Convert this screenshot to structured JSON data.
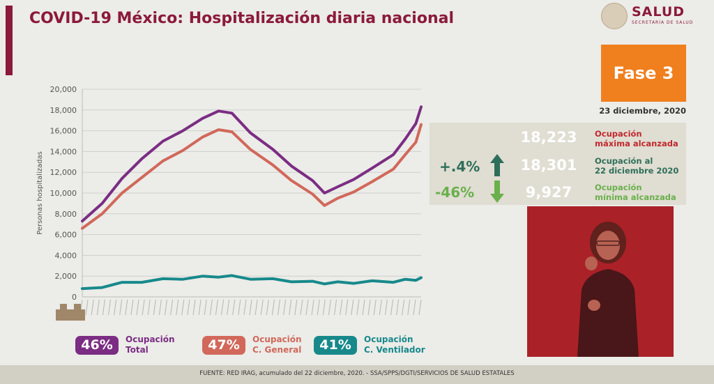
{
  "header": {
    "title": "COVID-19 México: Hospitalización diaria nacional",
    "logo_text": "SALUD",
    "logo_subtext": "SECRETARÍA DE SALUD"
  },
  "phase": {
    "label": "Fase 3",
    "date": "23 diciembre, 2020",
    "color": "#f07f1e"
  },
  "stats": {
    "max": {
      "value": "18,223",
      "label_line1": "Ocupación",
      "label_line2": "máxima alcanzada",
      "color": "#c0282d"
    },
    "current": {
      "value": "18,301",
      "label_line1": "Ocupación al",
      "label_line2": "22 diciembre 2020",
      "change": "+.4%",
      "direction": "up",
      "color": "#2e6f5a"
    },
    "min": {
      "value": "9,927",
      "label_line1": "Ocupación",
      "label_line2": "mínima alcanzada",
      "change": "-46%",
      "direction": "down",
      "color": "#6ab04c"
    }
  },
  "legend": [
    {
      "pct": "46%",
      "line1": "Ocupación",
      "line2": "Total",
      "color": "#7b2d83"
    },
    {
      "pct": "47%",
      "line1": "Ocupación",
      "line2": "C. General",
      "color": "#d1685a"
    },
    {
      "pct": "41%",
      "line1": "Ocupación",
      "line2": "C. Ventilador",
      "color": "#17898b"
    }
  ],
  "footer": "FUENTE: RED IRAG, acumulado del 22 diciembre, 2020. -  SSA/SPPS/DGTI/SERVICIOS DE SALUD ESTATALES",
  "chart_data": {
    "type": "line",
    "ylabel": "Personas hospitalizadas",
    "ylim": [
      0,
      20000
    ],
    "yticks": [
      "0",
      "2,000",
      "4,000",
      "6,000",
      "8,000",
      "10,000",
      "12,000",
      "14,000",
      "16,000",
      "18,000",
      "20,000"
    ],
    "grid": true,
    "x_range": [
      "2020-04-10",
      "2020-12-22"
    ],
    "series": [
      {
        "key": "total",
        "color": "#7b2d83",
        "values": [
          [
            "2020-04-10",
            7200
          ],
          [
            "2020-04-25",
            9100
          ],
          [
            "2020-05-10",
            11300
          ],
          [
            "2020-05-25",
            13400
          ],
          [
            "2020-06-10",
            14900
          ],
          [
            "2020-06-25",
            16100
          ],
          [
            "2020-07-10",
            17100
          ],
          [
            "2020-07-22",
            18000
          ],
          [
            "2020-08-01",
            17600
          ],
          [
            "2020-08-15",
            15900
          ],
          [
            "2020-09-01",
            14100
          ],
          [
            "2020-09-15",
            12700
          ],
          [
            "2020-10-01",
            11100
          ],
          [
            "2020-10-10",
            10100
          ],
          [
            "2020-10-20",
            10500
          ],
          [
            "2020-11-01",
            11400
          ],
          [
            "2020-11-15",
            12300
          ],
          [
            "2020-12-01",
            13800
          ],
          [
            "2020-12-10",
            15100
          ],
          [
            "2020-12-18",
            16800
          ],
          [
            "2020-12-22",
            18301
          ]
        ]
      },
      {
        "key": "general",
        "color": "#d1685a",
        "values": [
          [
            "2020-04-10",
            6500
          ],
          [
            "2020-04-25",
            8100
          ],
          [
            "2020-05-10",
            9900
          ],
          [
            "2020-05-25",
            11600
          ],
          [
            "2020-06-10",
            13000
          ],
          [
            "2020-06-25",
            14200
          ],
          [
            "2020-07-10",
            15300
          ],
          [
            "2020-07-22",
            16200
          ],
          [
            "2020-08-01",
            15800
          ],
          [
            "2020-08-15",
            14300
          ],
          [
            "2020-09-01",
            12600
          ],
          [
            "2020-09-15",
            11300
          ],
          [
            "2020-10-01",
            9800
          ],
          [
            "2020-10-10",
            8900
          ],
          [
            "2020-10-20",
            9400
          ],
          [
            "2020-11-01",
            10200
          ],
          [
            "2020-11-15",
            11000
          ],
          [
            "2020-12-01",
            12400
          ],
          [
            "2020-12-10",
            13600
          ],
          [
            "2020-12-18",
            15000
          ],
          [
            "2020-12-22",
            16600
          ]
        ]
      },
      {
        "key": "ventilador",
        "color": "#17898b",
        "values": [
          [
            "2020-04-10",
            700
          ],
          [
            "2020-04-25",
            1000
          ],
          [
            "2020-05-10",
            1300
          ],
          [
            "2020-05-25",
            1500
          ],
          [
            "2020-06-10",
            1650
          ],
          [
            "2020-06-25",
            1800
          ],
          [
            "2020-07-10",
            1900
          ],
          [
            "2020-07-22",
            2000
          ],
          [
            "2020-08-01",
            1950
          ],
          [
            "2020-08-15",
            1800
          ],
          [
            "2020-09-01",
            1650
          ],
          [
            "2020-09-15",
            1550
          ],
          [
            "2020-10-01",
            1400
          ],
          [
            "2020-10-10",
            1350
          ],
          [
            "2020-10-20",
            1350
          ],
          [
            "2020-11-01",
            1400
          ],
          [
            "2020-11-15",
            1450
          ],
          [
            "2020-12-01",
            1500
          ],
          [
            "2020-12-10",
            1600
          ],
          [
            "2020-12-18",
            1700
          ],
          [
            "2020-12-22",
            1850
          ]
        ]
      }
    ]
  }
}
